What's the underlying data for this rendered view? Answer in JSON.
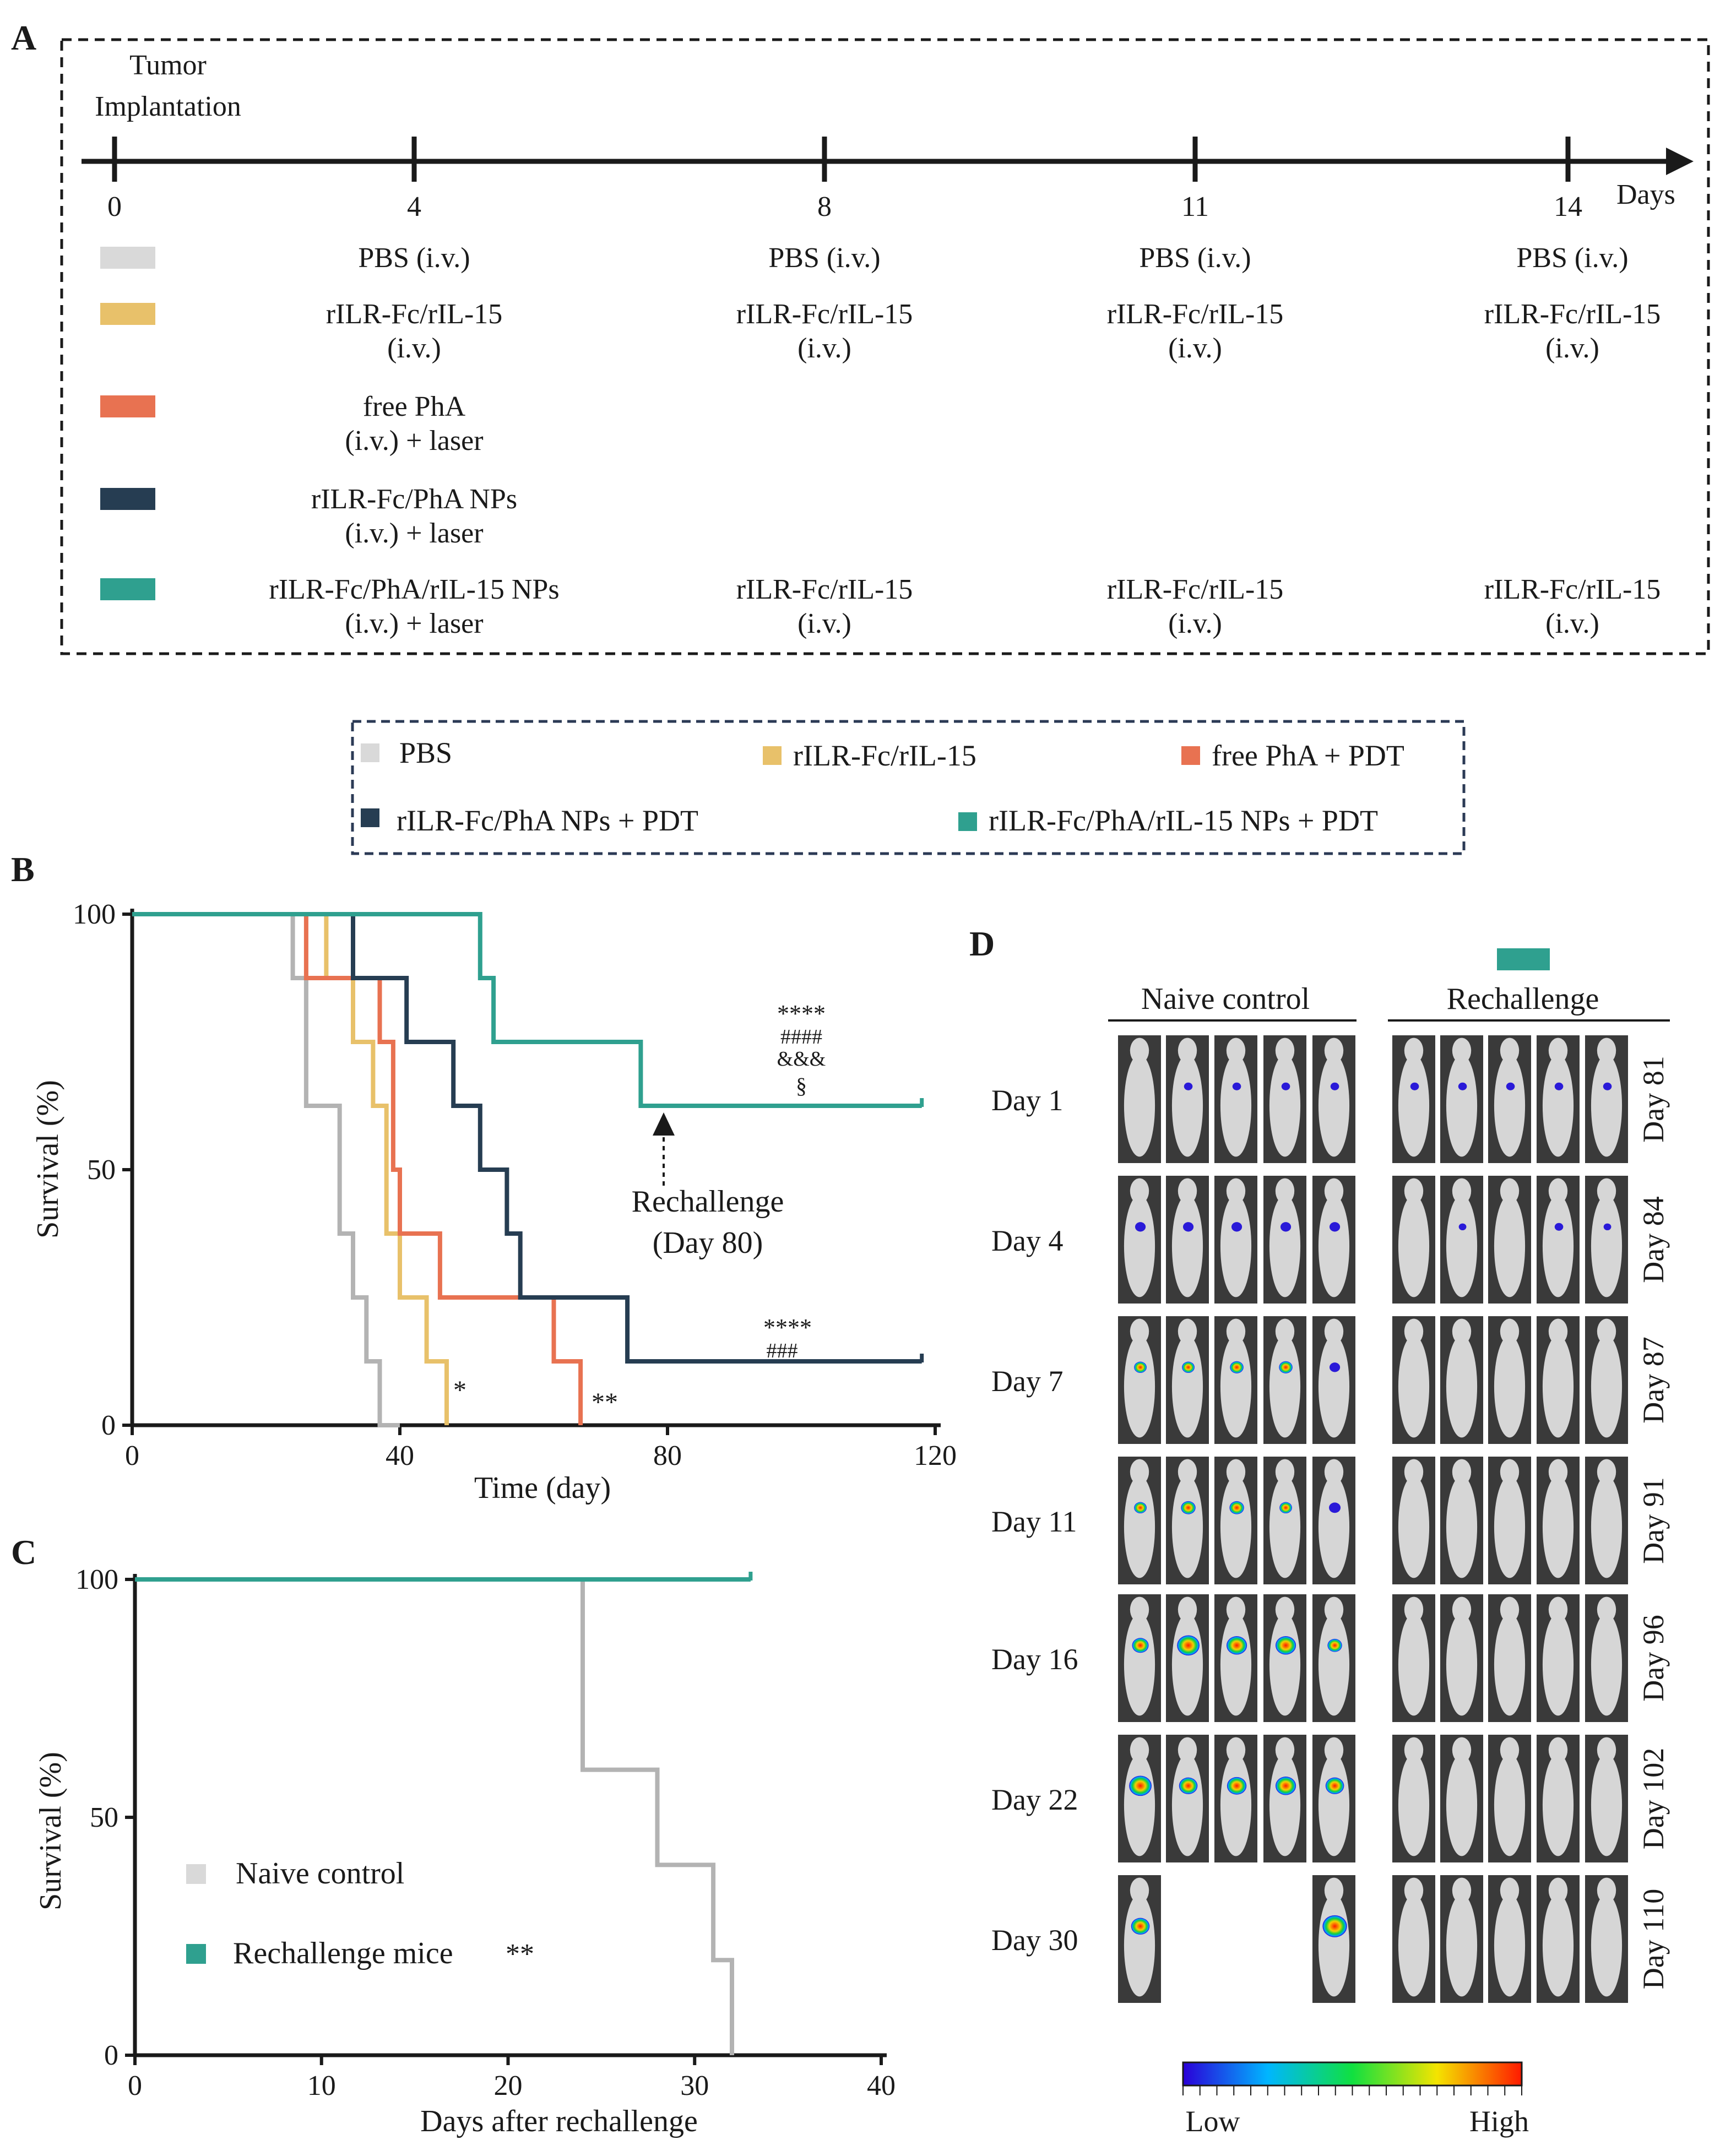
{
  "panels": {
    "A": "A",
    "B": "B",
    "C": "C",
    "D": "D"
  },
  "colors": {
    "pbs": "#d9d9d9",
    "ilr_il15": "#e8c16a",
    "free_pha": "#e87251",
    "ilr_pha": "#263d52",
    "ilr_pha_il15": "#2fa08f",
    "naive": "#b3b3b3"
  },
  "schedule": {
    "start_label_line1": "Tumor",
    "start_label_line2": "Implantation",
    "axis_unit": "Days",
    "days": [
      "0",
      "4",
      "8",
      "11",
      "14"
    ],
    "rows": [
      {
        "key": "pbs",
        "cells": [
          {
            "col": 0,
            "l1": "PBS (i.v.)",
            "l2": ""
          },
          {
            "col": 1,
            "l1": "PBS (i.v.)",
            "l2": ""
          },
          {
            "col": 2,
            "l1": "PBS (i.v.)",
            "l2": ""
          },
          {
            "col": 3,
            "l1": "PBS (i.v.)",
            "l2": ""
          }
        ]
      },
      {
        "key": "ilr_il15",
        "cells": [
          {
            "col": 0,
            "l1": "rILR-Fc/rIL-15",
            "l2": "(i.v.)"
          },
          {
            "col": 1,
            "l1": "rILR-Fc/rIL-15",
            "l2": "(i.v.)"
          },
          {
            "col": 2,
            "l1": "rILR-Fc/rIL-15",
            "l2": "(i.v.)"
          },
          {
            "col": 3,
            "l1": "rILR-Fc/rIL-15",
            "l2": "(i.v.)"
          }
        ]
      },
      {
        "key": "free_pha",
        "cells": [
          {
            "col": 0,
            "l1": "free PhA",
            "l2": "(i.v.) + laser"
          }
        ]
      },
      {
        "key": "ilr_pha",
        "cells": [
          {
            "col": 0,
            "l1": "rILR-Fc/PhA NPs",
            "l2": "(i.v.) + laser"
          }
        ]
      },
      {
        "key": "ilr_pha_il15",
        "cells": [
          {
            "col": 0,
            "l1": "rILR-Fc/PhA/rIL-15 NPs",
            "l2": "(i.v.) + laser"
          },
          {
            "col": 1,
            "l1": "rILR-Fc/rIL-15",
            "l2": "(i.v.)"
          },
          {
            "col": 2,
            "l1": "rILR-Fc/rIL-15",
            "l2": "(i.v.)"
          },
          {
            "col": 3,
            "l1": "rILR-Fc/rIL-15",
            "l2": "(i.v.)"
          }
        ]
      }
    ]
  },
  "legend": {
    "pbs": "PBS",
    "ilr_il15": "rILR-Fc/rIL-15",
    "free_pha": "free PhA + PDT",
    "ilr_pha": "rILR-Fc/PhA NPs + PDT",
    "ilr_pha_il15": "rILR-Fc/PhA/rIL-15 NPs + PDT"
  },
  "chart_data": [
    {
      "panel": "B",
      "type": "line",
      "step": true,
      "xlabel": "Time (day)",
      "ylabel": "Survival (%)",
      "xlim": [
        0,
        120
      ],
      "ylim": [
        0,
        100
      ],
      "xticks": [
        "0",
        "40",
        "80",
        "120"
      ],
      "yticks": [
        "0",
        "50",
        "100"
      ],
      "series": [
        {
          "name": "PBS",
          "color_key": "naive",
          "x": [
            0,
            24,
            24,
            26,
            26,
            31,
            31,
            33,
            33,
            35,
            35,
            37,
            37,
            40,
            40
          ],
          "y": [
            100,
            100,
            87.5,
            87.5,
            62.5,
            62.5,
            37.5,
            37.5,
            25,
            25,
            12.5,
            12.5,
            0,
            0,
            0
          ]
        },
        {
          "name": "rILR-Fc/rIL-15",
          "color_key": "ilr_il15",
          "x": [
            0,
            29,
            29,
            33,
            33,
            36,
            36,
            38,
            38,
            40,
            40,
            44,
            44,
            47,
            47
          ],
          "y": [
            100,
            100,
            87.5,
            87.5,
            75,
            75,
            62.5,
            62.5,
            37.5,
            37.5,
            25,
            25,
            12.5,
            12.5,
            0
          ]
        },
        {
          "name": "free PhA + PDT",
          "color_key": "free_pha",
          "x": [
            0,
            26,
            26,
            37,
            37,
            39,
            39,
            40,
            40,
            42,
            42,
            46,
            46,
            63,
            63,
            67,
            67
          ],
          "y": [
            100,
            100,
            87.5,
            87.5,
            75,
            75,
            50,
            50,
            37.5,
            37.5,
            37.5,
            37.5,
            25,
            25,
            12.5,
            12.5,
            0
          ]
        },
        {
          "name": "rILR-Fc/PhA NPs + PDT",
          "color_key": "ilr_pha",
          "x": [
            0,
            33,
            33,
            41,
            41,
            48,
            48,
            52,
            52,
            56,
            56,
            58,
            58,
            74,
            74,
            118
          ],
          "y": [
            100,
            100,
            87.5,
            87.5,
            75,
            75,
            62.5,
            62.5,
            50,
            50,
            37.5,
            37.5,
            25,
            25,
            12.5,
            12.5
          ]
        },
        {
          "name": "rILR-Fc/PhA/rIL-15 NPs + PDT",
          "color_key": "ilr_pha_il15",
          "x": [
            0,
            52,
            52,
            54,
            54,
            76,
            76,
            118
          ],
          "y": [
            100,
            100,
            87.5,
            87.5,
            75,
            75,
            62.5,
            62.5
          ]
        }
      ],
      "annotations": {
        "teal_sig": [
          "****",
          "####",
          "&&&",
          "§"
        ],
        "navy_sig": [
          "****",
          "###"
        ],
        "yellow_sig": "*",
        "orange_sig": "**",
        "rechallenge_l1": "Rechallenge",
        "rechallenge_l2": "(Day 80)"
      }
    },
    {
      "panel": "C",
      "type": "line",
      "step": true,
      "xlabel": "Days after rechallenge",
      "ylabel": "Survival (%)",
      "xlim": [
        0,
        40
      ],
      "ylim": [
        0,
        100
      ],
      "xticks": [
        "0",
        "10",
        "20",
        "30",
        "40"
      ],
      "yticks": [
        "0",
        "50",
        "100"
      ],
      "series": [
        {
          "name": "Naive control",
          "color_key": "naive",
          "x": [
            0,
            24,
            24,
            28,
            28,
            31,
            31,
            32,
            32
          ],
          "y": [
            100,
            100,
            60,
            60,
            40,
            40,
            20,
            20,
            0
          ]
        },
        {
          "name": "Rechallenge mice",
          "color_key": "ilr_pha_il15",
          "x": [
            0,
            33
          ],
          "y": [
            100,
            100
          ]
        }
      ],
      "legend_naive": "Naive control",
      "legend_rechallenge": "Rechallenge mice",
      "sig": "**"
    }
  ],
  "imaging": {
    "naive_header": "Naive control",
    "rechallenge_header": "Rechallenge",
    "left_days": [
      "Day 1",
      "Day 4",
      "Day 7",
      "Day 11",
      "Day 16",
      "Day 22",
      "Day 30"
    ],
    "right_days": [
      "Day 81",
      "Day 84",
      "Day 87",
      "Day 91",
      "Day 96",
      "Day 102",
      "Day 110"
    ],
    "naive_signal": [
      [
        0,
        0.1,
        0.1,
        0.1,
        0.1
      ],
      [
        0.2,
        0.2,
        0.2,
        0.2,
        0.2
      ],
      [
        0.3,
        0.3,
        0.35,
        0.35,
        0.2
      ],
      [
        0.3,
        0.4,
        0.4,
        0.3,
        0.25
      ],
      [
        0.5,
        0.8,
        0.7,
        0.7,
        0.4
      ],
      [
        0.8,
        0.6,
        0.65,
        0.7,
        0.6
      ],
      [
        0.6,
        -1,
        -1,
        -1,
        0.9
      ]
    ],
    "rechallenge_signal": [
      [
        0.1,
        0.1,
        0.1,
        0.1,
        0.1
      ],
      [
        0,
        0.05,
        0,
        0.1,
        0.05
      ],
      [
        0,
        0,
        0,
        0,
        0
      ],
      [
        0,
        0,
        0,
        0,
        0
      ],
      [
        0,
        0,
        0,
        0,
        0
      ],
      [
        0,
        0,
        0,
        0,
        0
      ],
      [
        0,
        0,
        0,
        0,
        0
      ]
    ],
    "scale_low": "Low",
    "scale_high": "High"
  }
}
